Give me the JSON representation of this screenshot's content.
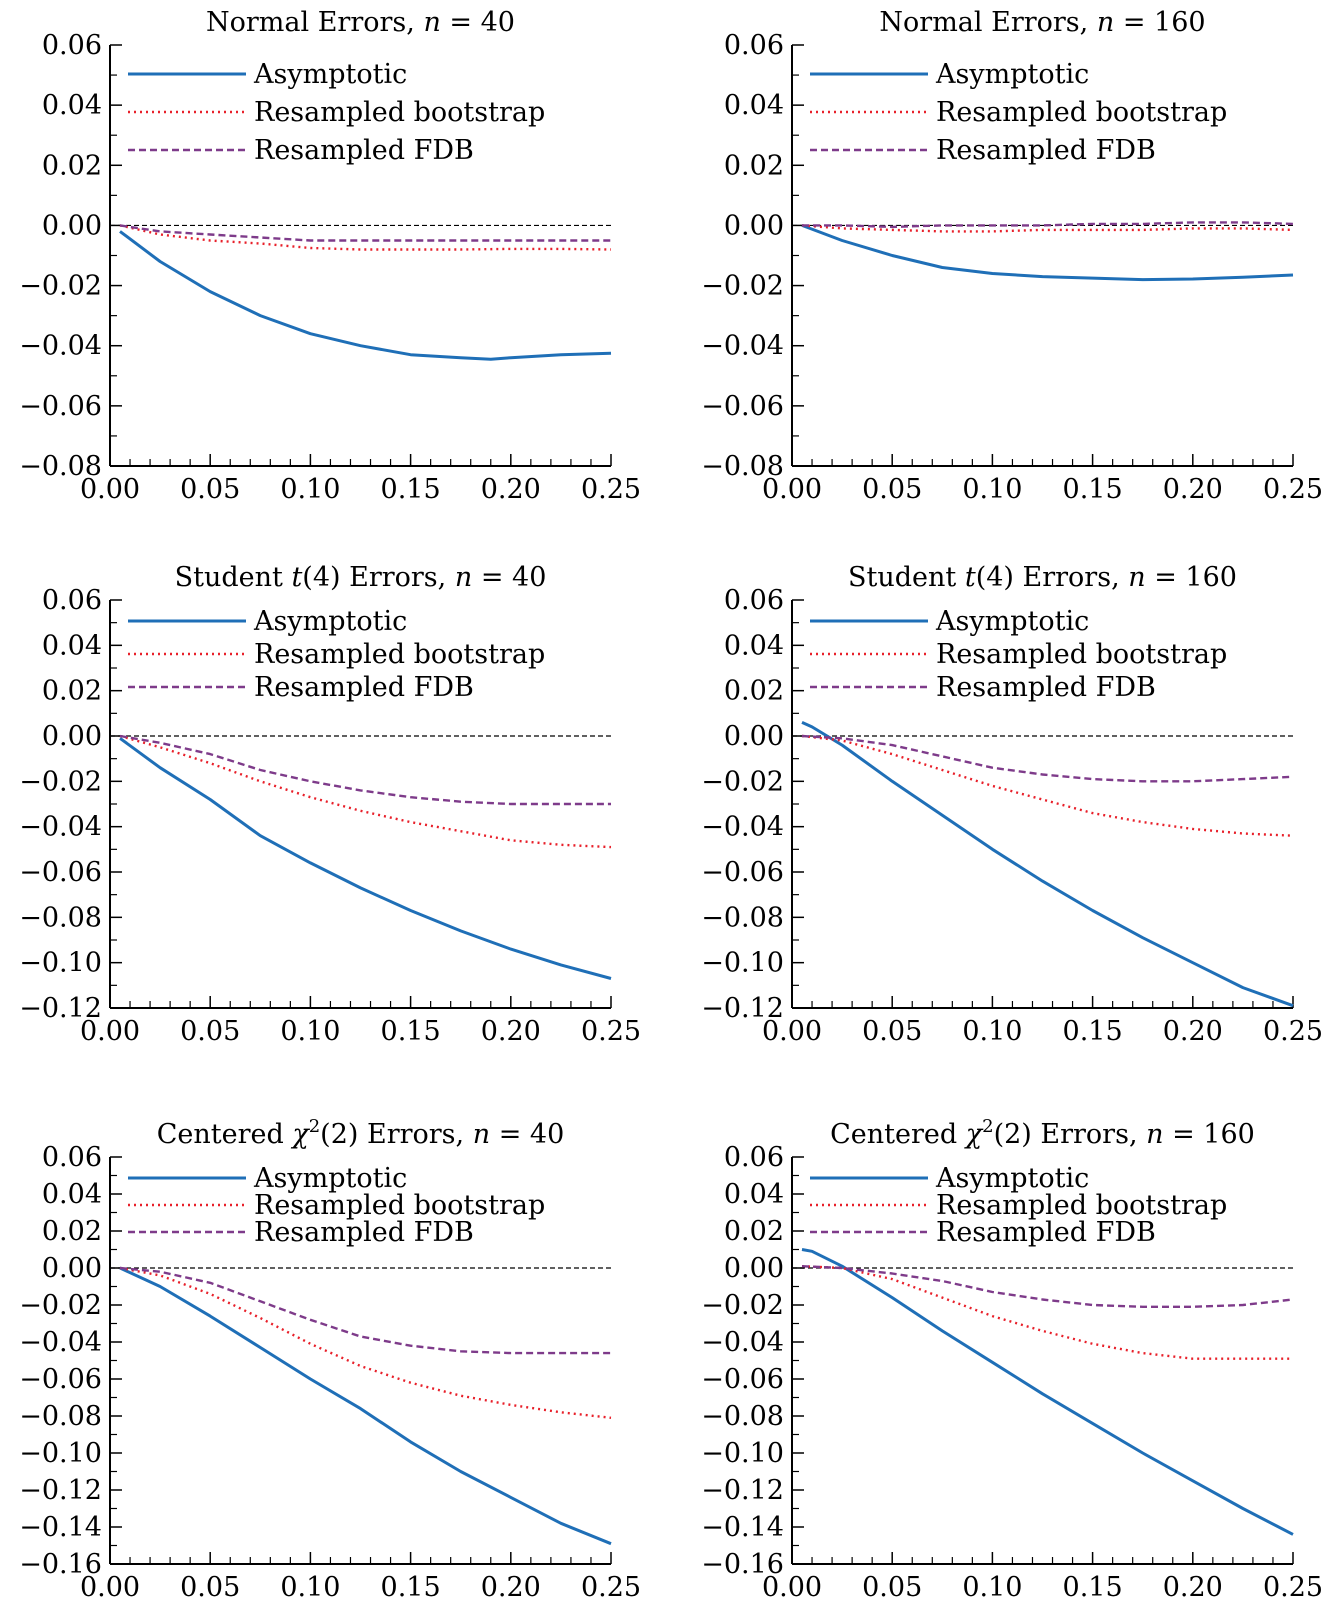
{
  "chart_data": [
    {
      "type": "line",
      "title": "Normal Errors, n = 40",
      "title_parts": [
        "Normal Errors, ",
        "n",
        " = 40"
      ],
      "xlim": [
        0.0,
        0.25
      ],
      "ylim": [
        -0.08,
        0.06
      ],
      "xticks": [
        0.0,
        0.05,
        0.1,
        0.15,
        0.2,
        0.25
      ],
      "xtick_labels": [
        "0.00",
        "0.05",
        "0.10",
        "0.15",
        "0.20",
        "0.25"
      ],
      "yticks": [
        -0.08,
        -0.06,
        -0.04,
        -0.02,
        0.0,
        0.02,
        0.04,
        0.06
      ],
      "ytick_labels": [
        "−0.08",
        "−0.06",
        "−0.04",
        "−0.02",
        "0.00",
        "0.02",
        "0.04",
        "0.06"
      ],
      "legend_position": "top-left",
      "reference_line": 0.0,
      "series": [
        {
          "name": "Asymptotic",
          "style": "solid",
          "color": "#1f6fb7",
          "x": [
            0.005,
            0.025,
            0.05,
            0.075,
            0.1,
            0.125,
            0.15,
            0.175,
            0.19,
            0.2,
            0.225,
            0.25
          ],
          "y": [
            -0.002,
            -0.012,
            -0.022,
            -0.03,
            -0.036,
            -0.04,
            -0.043,
            -0.044,
            -0.0445,
            -0.044,
            -0.043,
            -0.0425
          ]
        },
        {
          "name": "Resampled bootstrap",
          "style": "dotted",
          "color": "#e8202a",
          "x": [
            0.005,
            0.025,
            0.05,
            0.075,
            0.1,
            0.125,
            0.15,
            0.175,
            0.2,
            0.225,
            0.25
          ],
          "y": [
            0.0,
            -0.003,
            -0.005,
            -0.006,
            -0.0075,
            -0.008,
            -0.008,
            -0.008,
            -0.0078,
            -0.0078,
            -0.008
          ]
        },
        {
          "name": "Resampled FDB",
          "style": "dashed",
          "color": "#7e3b8a",
          "x": [
            0.005,
            0.025,
            0.05,
            0.075,
            0.1,
            0.125,
            0.15,
            0.175,
            0.2,
            0.225,
            0.25
          ],
          "y": [
            0.0,
            -0.002,
            -0.003,
            -0.004,
            -0.005,
            -0.005,
            -0.005,
            -0.005,
            -0.005,
            -0.005,
            -0.005
          ]
        }
      ]
    },
    {
      "type": "line",
      "title": "Normal Errors, n = 160",
      "title_parts": [
        "Normal Errors, ",
        "n",
        " = 160"
      ],
      "xlim": [
        0.0,
        0.25
      ],
      "ylim": [
        -0.08,
        0.06
      ],
      "xticks": [
        0.0,
        0.05,
        0.1,
        0.15,
        0.2,
        0.25
      ],
      "xtick_labels": [
        "0.00",
        "0.05",
        "0.10",
        "0.15",
        "0.20",
        "0.25"
      ],
      "yticks": [
        -0.08,
        -0.06,
        -0.04,
        -0.02,
        0.0,
        0.02,
        0.04,
        0.06
      ],
      "ytick_labels": [
        "−0.08",
        "−0.06",
        "−0.04",
        "−0.02",
        "0.00",
        "0.02",
        "0.04",
        "0.06"
      ],
      "legend_position": "top-left",
      "reference_line": 0.0,
      "series": [
        {
          "name": "Asymptotic",
          "style": "solid",
          "color": "#1f6fb7",
          "x": [
            0.005,
            0.025,
            0.05,
            0.075,
            0.1,
            0.125,
            0.15,
            0.175,
            0.2,
            0.225,
            0.25
          ],
          "y": [
            0.0,
            -0.005,
            -0.01,
            -0.014,
            -0.016,
            -0.017,
            -0.0175,
            -0.018,
            -0.0178,
            -0.0172,
            -0.0165
          ]
        },
        {
          "name": "Resampled bootstrap",
          "style": "dotted",
          "color": "#e8202a",
          "x": [
            0.005,
            0.025,
            0.05,
            0.075,
            0.1,
            0.125,
            0.15,
            0.175,
            0.2,
            0.225,
            0.25
          ],
          "y": [
            0.0,
            -0.001,
            -0.0015,
            -0.002,
            -0.002,
            -0.0015,
            -0.0015,
            -0.0015,
            -0.001,
            -0.001,
            -0.0015
          ]
        },
        {
          "name": "Resampled FDB",
          "style": "dashed",
          "color": "#7e3b8a",
          "x": [
            0.005,
            0.025,
            0.05,
            0.075,
            0.1,
            0.125,
            0.15,
            0.175,
            0.2,
            0.225,
            0.25
          ],
          "y": [
            0.0,
            0.0,
            -0.0005,
            0.0,
            0.0,
            0.0,
            0.0005,
            0.0005,
            0.001,
            0.001,
            0.0005
          ]
        }
      ]
    },
    {
      "type": "line",
      "title": "Student t(4) Errors, n = 40",
      "title_parts": [
        "Student ",
        "t",
        "(4) Errors, ",
        "n",
        " = 40"
      ],
      "xlim": [
        0.0,
        0.25
      ],
      "ylim": [
        -0.12,
        0.06
      ],
      "xticks": [
        0.0,
        0.05,
        0.1,
        0.15,
        0.2,
        0.25
      ],
      "xtick_labels": [
        "0.00",
        "0.05",
        "0.10",
        "0.15",
        "0.20",
        "0.25"
      ],
      "yticks": [
        -0.12,
        -0.1,
        -0.08,
        -0.06,
        -0.04,
        -0.02,
        0.0,
        0.02,
        0.04,
        0.06
      ],
      "ytick_labels": [
        "−0.12",
        "−0.10",
        "−0.08",
        "−0.06",
        "−0.04",
        "−0.02",
        "0.00",
        "0.02",
        "0.04",
        "0.06"
      ],
      "legend_position": "top-left",
      "reference_line": 0.0,
      "series": [
        {
          "name": "Asymptotic",
          "style": "solid",
          "color": "#1f6fb7",
          "x": [
            0.005,
            0.025,
            0.05,
            0.075,
            0.1,
            0.125,
            0.15,
            0.175,
            0.2,
            0.225,
            0.25
          ],
          "y": [
            -0.001,
            -0.014,
            -0.028,
            -0.044,
            -0.056,
            -0.067,
            -0.077,
            -0.086,
            -0.094,
            -0.101,
            -0.107
          ]
        },
        {
          "name": "Resampled bootstrap",
          "style": "dotted",
          "color": "#e8202a",
          "x": [
            0.005,
            0.025,
            0.05,
            0.075,
            0.1,
            0.125,
            0.15,
            0.175,
            0.2,
            0.225,
            0.25
          ],
          "y": [
            0.0,
            -0.005,
            -0.012,
            -0.02,
            -0.027,
            -0.033,
            -0.038,
            -0.042,
            -0.046,
            -0.048,
            -0.049
          ]
        },
        {
          "name": "Resampled FDB",
          "style": "dashed",
          "color": "#7e3b8a",
          "x": [
            0.005,
            0.025,
            0.05,
            0.075,
            0.1,
            0.125,
            0.15,
            0.175,
            0.2,
            0.225,
            0.25
          ],
          "y": [
            0.0,
            -0.003,
            -0.008,
            -0.015,
            -0.02,
            -0.024,
            -0.027,
            -0.029,
            -0.03,
            -0.03,
            -0.03
          ]
        }
      ]
    },
    {
      "type": "line",
      "title": "Student t(4) Errors, n = 160",
      "title_parts": [
        "Student ",
        "t",
        "(4) Errors, ",
        "n",
        " = 160"
      ],
      "xlim": [
        0.0,
        0.25
      ],
      "ylim": [
        -0.12,
        0.06
      ],
      "xticks": [
        0.0,
        0.05,
        0.1,
        0.15,
        0.2,
        0.25
      ],
      "xtick_labels": [
        "0.00",
        "0.05",
        "0.10",
        "0.15",
        "0.20",
        "0.25"
      ],
      "yticks": [
        -0.12,
        -0.1,
        -0.08,
        -0.06,
        -0.04,
        -0.02,
        0.0,
        0.02,
        0.04,
        0.06
      ],
      "ytick_labels": [
        "−0.12",
        "−0.10",
        "−0.08",
        "−0.06",
        "−0.04",
        "−0.02",
        "0.00",
        "0.02",
        "0.04",
        "0.06"
      ],
      "legend_position": "top-left",
      "reference_line": 0.0,
      "series": [
        {
          "name": "Asymptotic",
          "style": "solid",
          "color": "#1f6fb7",
          "x": [
            0.005,
            0.01,
            0.025,
            0.05,
            0.075,
            0.1,
            0.125,
            0.15,
            0.175,
            0.2,
            0.225,
            0.25
          ],
          "y": [
            0.006,
            0.004,
            -0.004,
            -0.02,
            -0.035,
            -0.05,
            -0.064,
            -0.077,
            -0.089,
            -0.1,
            -0.111,
            -0.119
          ]
        },
        {
          "name": "Resampled bootstrap",
          "style": "dotted",
          "color": "#e8202a",
          "x": [
            0.005,
            0.025,
            0.05,
            0.075,
            0.1,
            0.125,
            0.15,
            0.175,
            0.2,
            0.225,
            0.25
          ],
          "y": [
            0.0,
            -0.002,
            -0.008,
            -0.015,
            -0.022,
            -0.028,
            -0.034,
            -0.038,
            -0.041,
            -0.043,
            -0.044
          ]
        },
        {
          "name": "Resampled FDB",
          "style": "dashed",
          "color": "#7e3b8a",
          "x": [
            0.005,
            0.025,
            0.05,
            0.075,
            0.1,
            0.125,
            0.15,
            0.175,
            0.2,
            0.225,
            0.25
          ],
          "y": [
            0.0,
            -0.001,
            -0.004,
            -0.009,
            -0.014,
            -0.017,
            -0.019,
            -0.02,
            -0.02,
            -0.019,
            -0.018
          ]
        }
      ]
    },
    {
      "type": "line",
      "title": "Centered χ2(2) Errors, n = 40",
      "title_parts": [
        "Centered ",
        "χ",
        "2",
        "(2) Errors, ",
        "n",
        " = 40"
      ],
      "xlim": [
        0.0,
        0.25
      ],
      "ylim": [
        -0.16,
        0.06
      ],
      "xticks": [
        0.0,
        0.05,
        0.1,
        0.15,
        0.2,
        0.25
      ],
      "xtick_labels": [
        "0.00",
        "0.05",
        "0.10",
        "0.15",
        "0.20",
        "0.25"
      ],
      "yticks": [
        -0.16,
        -0.14,
        -0.12,
        -0.1,
        -0.08,
        -0.06,
        -0.04,
        -0.02,
        0.0,
        0.02,
        0.04,
        0.06
      ],
      "ytick_labels": [
        "−0.16",
        "−0.14",
        "−0.12",
        "−0.10",
        "−0.08",
        "−0.06",
        "−0.04",
        "−0.02",
        "0.00",
        "0.02",
        "0.04",
        "0.06"
      ],
      "legend_position": "top-left",
      "reference_line": 0.0,
      "series": [
        {
          "name": "Asymptotic",
          "style": "solid",
          "color": "#1f6fb7",
          "x": [
            0.005,
            0.025,
            0.05,
            0.075,
            0.1,
            0.125,
            0.15,
            0.175,
            0.2,
            0.225,
            0.25
          ],
          "y": [
            0.0,
            -0.01,
            -0.026,
            -0.043,
            -0.06,
            -0.076,
            -0.094,
            -0.11,
            -0.124,
            -0.138,
            -0.149
          ]
        },
        {
          "name": "Resampled bootstrap",
          "style": "dotted",
          "color": "#e8202a",
          "x": [
            0.005,
            0.025,
            0.05,
            0.075,
            0.1,
            0.125,
            0.15,
            0.175,
            0.2,
            0.225,
            0.25
          ],
          "y": [
            0.0,
            -0.004,
            -0.014,
            -0.027,
            -0.041,
            -0.053,
            -0.062,
            -0.069,
            -0.074,
            -0.078,
            -0.081
          ]
        },
        {
          "name": "Resampled FDB",
          "style": "dashed",
          "color": "#7e3b8a",
          "x": [
            0.005,
            0.025,
            0.05,
            0.075,
            0.1,
            0.125,
            0.15,
            0.175,
            0.2,
            0.225,
            0.25
          ],
          "y": [
            0.0,
            -0.002,
            -0.008,
            -0.018,
            -0.028,
            -0.037,
            -0.042,
            -0.045,
            -0.046,
            -0.046,
            -0.046
          ]
        }
      ]
    },
    {
      "type": "line",
      "title": "Centered χ2(2) Errors, n = 160",
      "title_parts": [
        "Centered ",
        "χ",
        "2",
        "(2) Errors, ",
        "n",
        " = 160"
      ],
      "xlim": [
        0.0,
        0.25
      ],
      "ylim": [
        -0.16,
        0.06
      ],
      "xticks": [
        0.0,
        0.05,
        0.1,
        0.15,
        0.2,
        0.25
      ],
      "xtick_labels": [
        "0.00",
        "0.05",
        "0.10",
        "0.15",
        "0.20",
        "0.25"
      ],
      "yticks": [
        -0.16,
        -0.14,
        -0.12,
        -0.1,
        -0.08,
        -0.06,
        -0.04,
        -0.02,
        0.0,
        0.02,
        0.04,
        0.06
      ],
      "ytick_labels": [
        "−0.16",
        "−0.14",
        "−0.12",
        "−0.10",
        "−0.08",
        "−0.06",
        "−0.04",
        "−0.02",
        "0.00",
        "0.02",
        "0.04",
        "0.06"
      ],
      "legend_position": "top-left",
      "reference_line": 0.0,
      "series": [
        {
          "name": "Asymptotic",
          "style": "solid",
          "color": "#1f6fb7",
          "x": [
            0.005,
            0.01,
            0.025,
            0.05,
            0.075,
            0.1,
            0.125,
            0.15,
            0.175,
            0.2,
            0.225,
            0.25
          ],
          "y": [
            0.01,
            0.009,
            0.001,
            -0.016,
            -0.034,
            -0.051,
            -0.068,
            -0.084,
            -0.1,
            -0.115,
            -0.13,
            -0.144
          ]
        },
        {
          "name": "Resampled bootstrap",
          "style": "dotted",
          "color": "#e8202a",
          "x": [
            0.005,
            0.025,
            0.05,
            0.075,
            0.1,
            0.125,
            0.15,
            0.175,
            0.2,
            0.225,
            0.25
          ],
          "y": [
            0.001,
            0.0,
            -0.006,
            -0.016,
            -0.026,
            -0.034,
            -0.041,
            -0.046,
            -0.049,
            -0.049,
            -0.049
          ]
        },
        {
          "name": "Resampled FDB",
          "style": "dashed",
          "color": "#7e3b8a",
          "x": [
            0.005,
            0.025,
            0.05,
            0.075,
            0.1,
            0.125,
            0.15,
            0.175,
            0.2,
            0.225,
            0.25
          ],
          "y": [
            0.001,
            0.0,
            -0.003,
            -0.007,
            -0.013,
            -0.017,
            -0.02,
            -0.021,
            -0.021,
            -0.02,
            -0.017
          ]
        }
      ]
    }
  ]
}
